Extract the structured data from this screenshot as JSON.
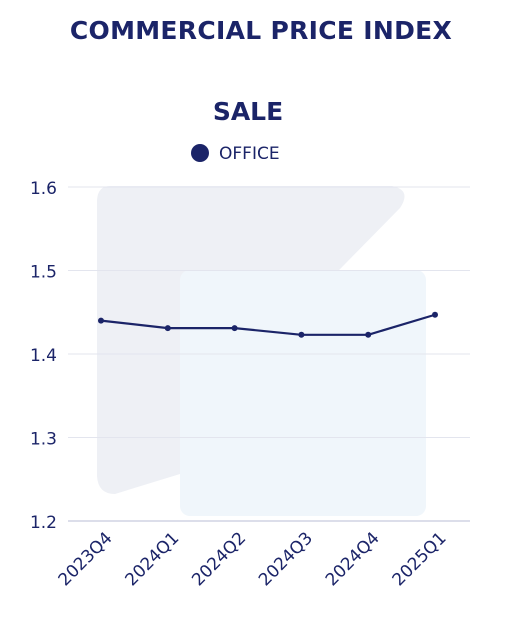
{
  "header": {
    "title": "COMMERCIAL PRICE INDEX"
  },
  "colors": {
    "title": "#1b2468",
    "series": "#1b2468",
    "grid": "#e3e5ee",
    "axis_text": "#1b2468",
    "watermark_dark": "#eef0f5",
    "watermark_light": "#f0f6fb"
  },
  "chart_data": {
    "type": "line",
    "title": "SALE",
    "categories": [
      "2023Q4",
      "2024Q1",
      "2024Q2",
      "2024Q3",
      "2024Q4",
      "2025Q1"
    ],
    "series": [
      {
        "name": "OFFICE",
        "values": [
          1.44,
          1.431,
          1.431,
          1.423,
          1.423,
          1.447
        ]
      }
    ],
    "xlabel": "",
    "ylabel": "",
    "ylim": [
      1.2,
      1.6
    ],
    "yticks": [
      "1.2",
      "1.3",
      "1.4",
      "1.5",
      "1.6"
    ],
    "grid": true,
    "legend_position": "top"
  }
}
